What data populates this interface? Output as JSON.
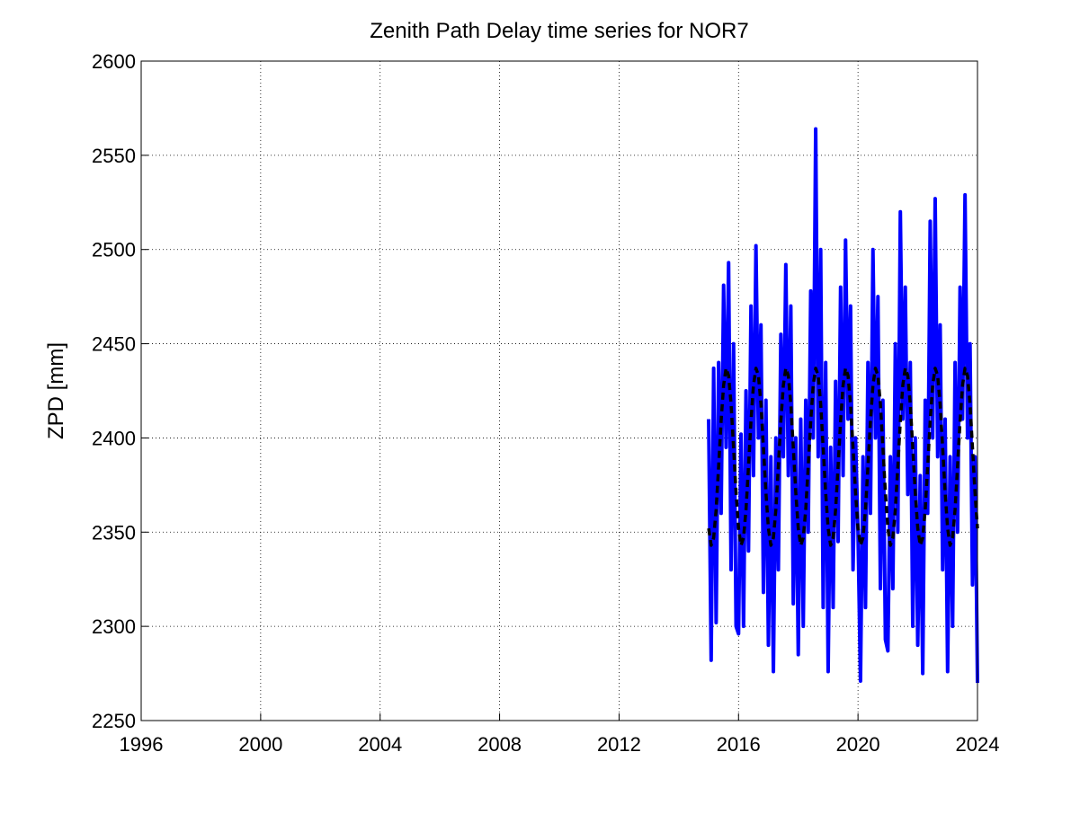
{
  "chart_data": {
    "type": "line",
    "title": "Zenith Path Delay time series for NOR7",
    "y_label": "ZPD [mm]",
    "x": [
      2015,
      2015.083,
      2015.167,
      2015.25,
      2015.333,
      2015.417,
      2015.5,
      2015.583,
      2015.667,
      2015.75,
      2015.833,
      2015.917,
      2016,
      2016.083,
      2016.167,
      2016.25,
      2016.333,
      2016.417,
      2016.5,
      2016.583,
      2016.667,
      2016.75,
      2016.833,
      2016.917,
      2017,
      2017.083,
      2017.167,
      2017.25,
      2017.333,
      2017.417,
      2017.5,
      2017.583,
      2017.667,
      2017.75,
      2017.833,
      2017.917,
      2018,
      2018.083,
      2018.167,
      2018.25,
      2018.333,
      2018.417,
      2018.5,
      2018.583,
      2018.667,
      2018.75,
      2018.833,
      2018.917,
      2019,
      2019.083,
      2019.167,
      2019.25,
      2019.333,
      2019.417,
      2019.5,
      2019.583,
      2019.667,
      2019.75,
      2019.833,
      2019.917,
      2020,
      2020.083,
      2020.167,
      2020.25,
      2020.333,
      2020.417,
      2020.5,
      2020.583,
      2020.667,
      2020.75,
      2020.833,
      2020.917,
      2021,
      2021.083,
      2021.167,
      2021.25,
      2021.333,
      2021.417,
      2021.5,
      2021.583,
      2021.667,
      2021.75,
      2021.833,
      2021.917,
      2022,
      2022.083,
      2022.167,
      2022.25,
      2022.333,
      2022.417,
      2022.5,
      2022.583,
      2022.667,
      2022.75,
      2022.833,
      2022.917,
      2023,
      2023.083,
      2023.167,
      2023.25,
      2023.333,
      2023.417,
      2023.5,
      2023.583,
      2023.667,
      2023.75,
      2023.833,
      2023.917,
      2024
    ],
    "series": [
      {
        "color": "#0000ff",
        "dashed": false,
        "values": [
          2410,
          2282,
          2437,
          2302,
          2440,
          2360,
          2481,
          2395,
          2493,
          2330,
          2450,
          2300,
          2296,
          2402,
          2300,
          2425,
          2340,
          2470,
          2380,
          2502,
          2400,
          2460,
          2318,
          2420,
          2290,
          2390,
          2276,
          2400,
          2330,
          2455,
          2390,
          2492,
          2380,
          2470,
          2312,
          2400,
          2285,
          2410,
          2300,
          2420,
          2350,
          2478,
          2400,
          2564,
          2390,
          2500,
          2310,
          2440,
          2276,
          2395,
          2310,
          2430,
          2345,
          2480,
          2380,
          2505,
          2410,
          2470,
          2330,
          2400,
          2350,
          2271,
          2390,
          2310,
          2440,
          2360,
          2500,
          2400,
          2475,
          2320,
          2420,
          2293,
          2287,
          2390,
          2320,
          2450,
          2350,
          2520,
          2410,
          2480,
          2370,
          2440,
          2300,
          2400,
          2290,
          2380,
          2275,
          2420,
          2360,
          2515,
          2400,
          2527,
          2390,
          2460,
          2330,
          2410,
          2276,
          2390,
          2300,
          2440,
          2350,
          2480,
          2410,
          2529,
          2400,
          2450,
          2322,
          2390,
          2270
        ]
      },
      {
        "color": "#000000",
        "dashed": true,
        "values": [
          2352,
          2343,
          2347,
          2362,
          2385,
          2409,
          2428,
          2437,
          2433,
          2418,
          2395,
          2371,
          2352,
          2343,
          2347,
          2362,
          2385,
          2409,
          2428,
          2437,
          2433,
          2418,
          2395,
          2371,
          2352,
          2343,
          2347,
          2362,
          2385,
          2409,
          2428,
          2437,
          2433,
          2418,
          2395,
          2371,
          2352,
          2343,
          2347,
          2362,
          2385,
          2409,
          2428,
          2437,
          2433,
          2418,
          2395,
          2371,
          2352,
          2343,
          2347,
          2362,
          2385,
          2409,
          2428,
          2437,
          2433,
          2418,
          2395,
          2371,
          2352,
          2343,
          2347,
          2362,
          2385,
          2409,
          2428,
          2437,
          2433,
          2418,
          2395,
          2371,
          2352,
          2343,
          2347,
          2362,
          2385,
          2409,
          2428,
          2437,
          2433,
          2418,
          2395,
          2371,
          2352,
          2343,
          2347,
          2362,
          2385,
          2409,
          2428,
          2437,
          2433,
          2418,
          2395,
          2371,
          2352,
          2343,
          2347,
          2362,
          2385,
          2409,
          2428,
          2437,
          2433,
          2418,
          2395,
          2371,
          2352
        ]
      }
    ],
    "xlim": [
      1996,
      2024
    ],
    "xticks": [
      1996,
      2000,
      2004,
      2008,
      2012,
      2016,
      2020,
      2024
    ],
    "ylim": [
      2250,
      2600
    ],
    "yticks": [
      2250,
      2300,
      2350,
      2400,
      2450,
      2500,
      2550,
      2600
    ],
    "grid": true
  }
}
